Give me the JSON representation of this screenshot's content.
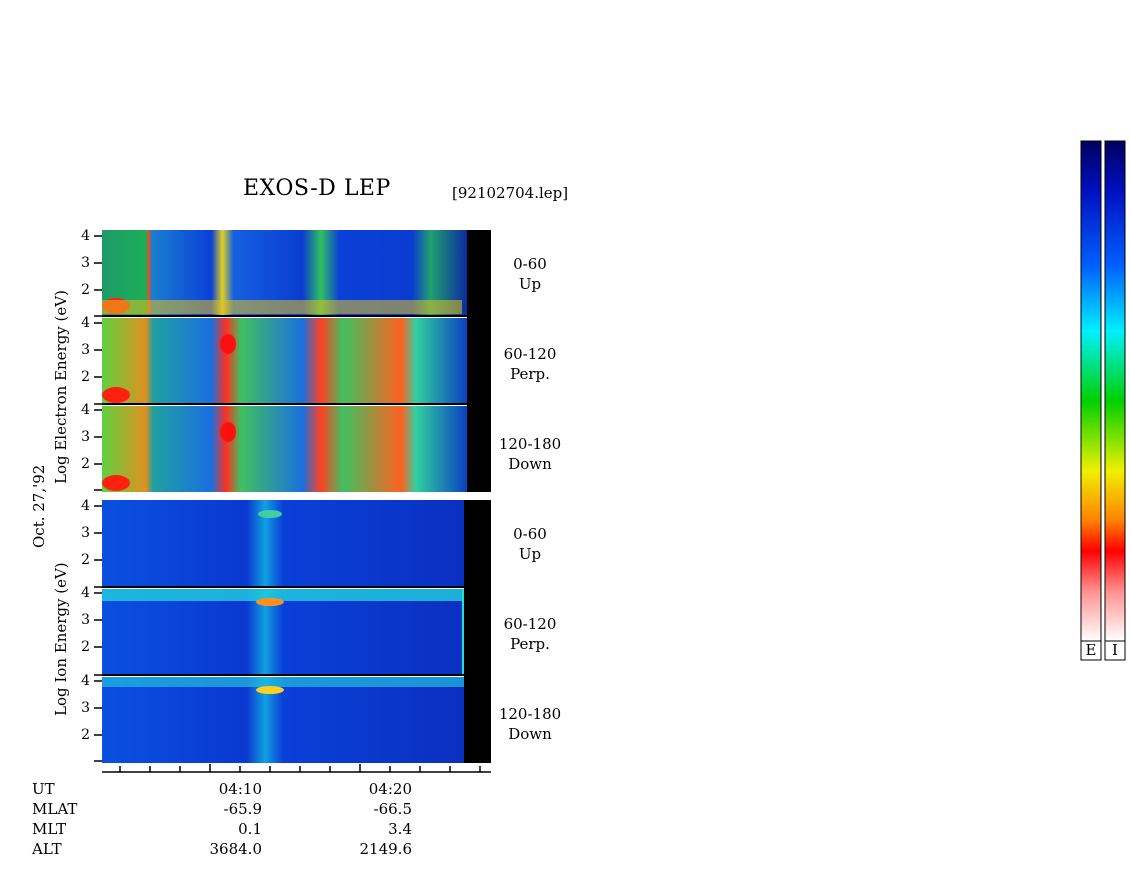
{
  "header": {
    "title": "EXOS-D LEP",
    "filename": "[92102704.lep]"
  },
  "date_label": "Oct. 27,'92",
  "electron_ylabel": "Log Electron Energy (eV)",
  "ion_ylabel": "Log Ion Energy (eV)",
  "panels": [
    {
      "species": "electron",
      "pitch": "0-60",
      "dir": "Up"
    },
    {
      "species": "electron",
      "pitch": "60-120",
      "dir": "Perp."
    },
    {
      "species": "electron",
      "pitch": "120-180",
      "dir": "Down"
    },
    {
      "species": "ion",
      "pitch": "0-60",
      "dir": "Up"
    },
    {
      "species": "ion",
      "pitch": "60-120",
      "dir": "Perp."
    },
    {
      "species": "ion",
      "pitch": "120-180",
      "dir": "Down"
    }
  ],
  "yticks": [
    "4",
    "3",
    "2"
  ],
  "footer": {
    "labels": [
      "UT",
      "MLAT",
      "MLT",
      "ALT"
    ],
    "columns": [
      {
        "UT": "04:10",
        "MLAT": "-65.9",
        "MLT": "0.1",
        "ALT": "3684.0"
      },
      {
        "UT": "04:20",
        "MLAT": "-66.5",
        "MLT": "3.4",
        "ALT": "2149.6"
      }
    ]
  },
  "colorbar": {
    "letters": [
      "E",
      "I"
    ]
  },
  "chart_data": {
    "type": "heatmap",
    "title": "EXOS-D LEP",
    "xlabel": "UT",
    "x_ticks": [
      "04:10",
      "04:20"
    ],
    "ylim": [
      1,
      4
    ],
    "series": [
      {
        "name": "0-60 Up"
      },
      {
        "name": "60-120 Perp."
      },
      {
        "name": "120-180 Down"
      }
    ]
  }
}
